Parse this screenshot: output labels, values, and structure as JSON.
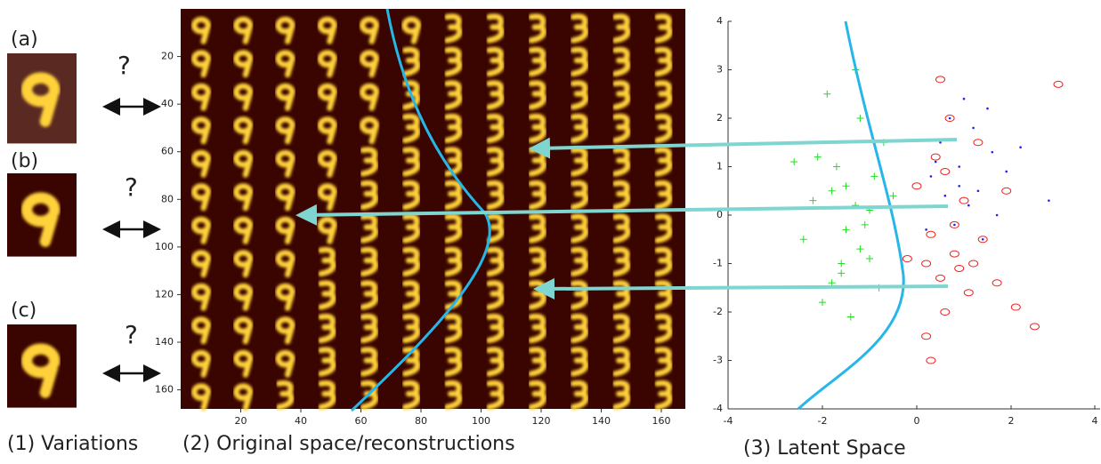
{
  "panel_labels": [
    "(a)",
    "(b)",
    "(c)"
  ],
  "question_mark": "?",
  "captions": [
    "(1) Variations",
    "(2) Original space/reconstructions",
    "(3) Latent Space"
  ],
  "grid_plot": {
    "xlim": [
      0,
      168
    ],
    "ylim": [
      0,
      168
    ],
    "xticks": [
      20,
      40,
      60,
      80,
      100,
      120,
      140,
      160
    ],
    "yticks": [
      20,
      40,
      60,
      80,
      100,
      120,
      140,
      160
    ]
  },
  "chart_data": {
    "type": "scatter",
    "xlim": [
      -4,
      4
    ],
    "ylim": [
      -4,
      4
    ],
    "xticks": [
      -4,
      -2,
      0,
      2,
      4
    ],
    "yticks": [
      -4,
      -3,
      -2,
      -1,
      0,
      1,
      2,
      3,
      4
    ],
    "series": [
      {
        "color": "#22dd22",
        "marker": "plus",
        "x": [
          -2.1,
          -1.8,
          -1.5,
          -1.2,
          -0.9,
          -2.4,
          -1.6,
          -1.0,
          -1.3,
          -2.0,
          -0.7,
          -1.7,
          -1.4,
          -2.2,
          -1.1,
          -0.8,
          -1.9,
          -1.5,
          -1.2,
          -2.6,
          -1.0,
          -1.6,
          -0.5,
          -1.3,
          -1.8
        ],
        "y": [
          1.2,
          0.5,
          -0.3,
          2.0,
          0.8,
          -0.5,
          -1.2,
          -0.9,
          0.2,
          -1.8,
          1.5,
          1.0,
          -2.1,
          0.3,
          -0.2,
          -1.5,
          2.5,
          0.6,
          -0.7,
          1.1,
          0.1,
          -1.0,
          0.4,
          3.0,
          -1.4
        ]
      },
      {
        "color": "#ee2222",
        "marker": "circle",
        "x": [
          0.2,
          0.5,
          0.8,
          1.1,
          0.3,
          0.6,
          0.9,
          1.4,
          0.0,
          0.4,
          1.7,
          2.1,
          0.7,
          1.0,
          0.2,
          1.3,
          2.5,
          0.5,
          0.8,
          -0.2,
          1.9,
          0.3,
          3.0,
          1.2,
          0.6
        ],
        "y": [
          -1.0,
          -1.3,
          -0.8,
          -1.6,
          -0.4,
          -2.0,
          -1.1,
          -0.5,
          0.6,
          1.2,
          -1.4,
          -1.9,
          2.0,
          0.3,
          -2.5,
          1.5,
          -2.3,
          2.8,
          -0.2,
          -0.9,
          0.5,
          -3.0,
          2.7,
          -1.0,
          0.9
        ]
      },
      {
        "color": "#2222ee",
        "marker": "dot",
        "x": [
          0.5,
          0.9,
          1.3,
          0.7,
          1.1,
          1.6,
          0.3,
          0.8,
          1.9,
          1.2,
          0.6,
          1.4,
          2.2,
          1.0,
          0.4,
          1.7,
          0.9,
          2.8,
          1.5,
          0.2
        ],
        "y": [
          1.5,
          1.0,
          0.5,
          2.0,
          0.2,
          1.3,
          0.8,
          -0.2,
          0.9,
          1.8,
          0.4,
          -0.5,
          1.4,
          2.4,
          1.1,
          0.0,
          0.6,
          0.3,
          2.2,
          -0.3
        ]
      }
    ]
  }
}
